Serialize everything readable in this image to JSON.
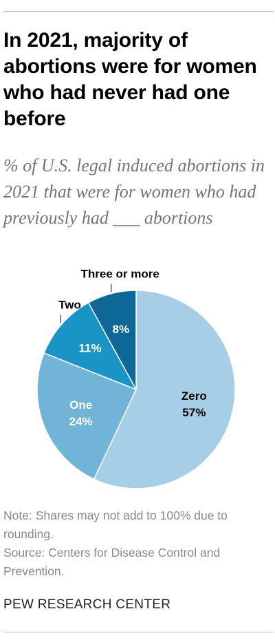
{
  "title": "In 2021, majority of abortions were for women who had never had one before",
  "subtitle": "% of U.S. legal induced abortions in 2021 that were for women who had previously had ___ abortions",
  "chart_data": {
    "type": "pie",
    "unit": "%",
    "slices": [
      {
        "label": "Zero",
        "value": 57,
        "color": "#a6cee7",
        "text_color": "#000000"
      },
      {
        "label": "One",
        "value": 24,
        "color": "#72b3d8",
        "text_color": "#ffffff"
      },
      {
        "label": "Two",
        "value": 11,
        "color": "#1a93c7",
        "text_color": "#ffffff"
      },
      {
        "label": "Three or more",
        "value": 8,
        "color": "#0d6797",
        "text_color": "#ffffff"
      }
    ]
  },
  "note": "Note: Shares may not add to 100% due to rounding.",
  "source": "Source: Centers for Disease Control and Prevention.",
  "brand": "PEW RESEARCH CENTER"
}
